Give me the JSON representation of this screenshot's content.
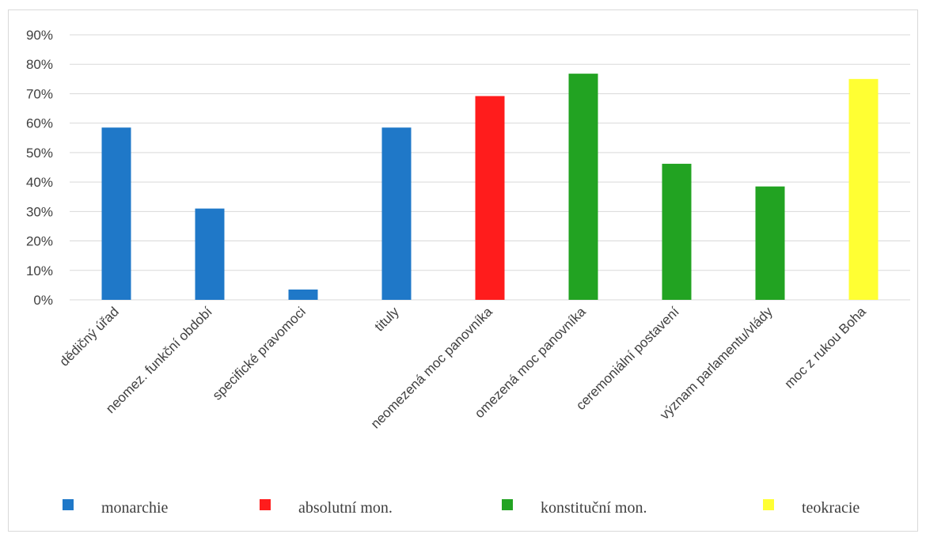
{
  "chart_data": {
    "type": "bar",
    "categories": [
      "dědičný úřad",
      "neomez. funkční období",
      "specifické pravomoci",
      "tituly",
      "neomezená moc panovníka",
      "omezená moc panovníka",
      "ceremoniální postavení",
      "význam parlamentu/vlády",
      "moc z rukou Boha"
    ],
    "values": [
      0.585,
      0.31,
      0.035,
      0.585,
      0.692,
      0.768,
      0.462,
      0.385,
      0.75
    ],
    "bar_groups": [
      "monarchie",
      "monarchie",
      "monarchie",
      "monarchie",
      "absolutní mon.",
      "konstituční mon.",
      "konstituční mon.",
      "konstituční mon.",
      "teokracie"
    ],
    "legend": [
      {
        "name": "monarchie",
        "color": "#1f78c8"
      },
      {
        "name": "absolutní mon.",
        "color": "#ff1c1c"
      },
      {
        "name": "konstituční mon.",
        "color": "#22a322"
      },
      {
        "name": "teokracie",
        "color": "#ffff33"
      }
    ],
    "yticks": [
      "0%",
      "10%",
      "20%",
      "30%",
      "40%",
      "50%",
      "60%",
      "70%",
      "80%",
      "90%"
    ],
    "ylim": [
      0,
      0.9
    ],
    "grid": true,
    "legend_position": "bottom",
    "title": "",
    "xlabel": "",
    "ylabel": ""
  }
}
